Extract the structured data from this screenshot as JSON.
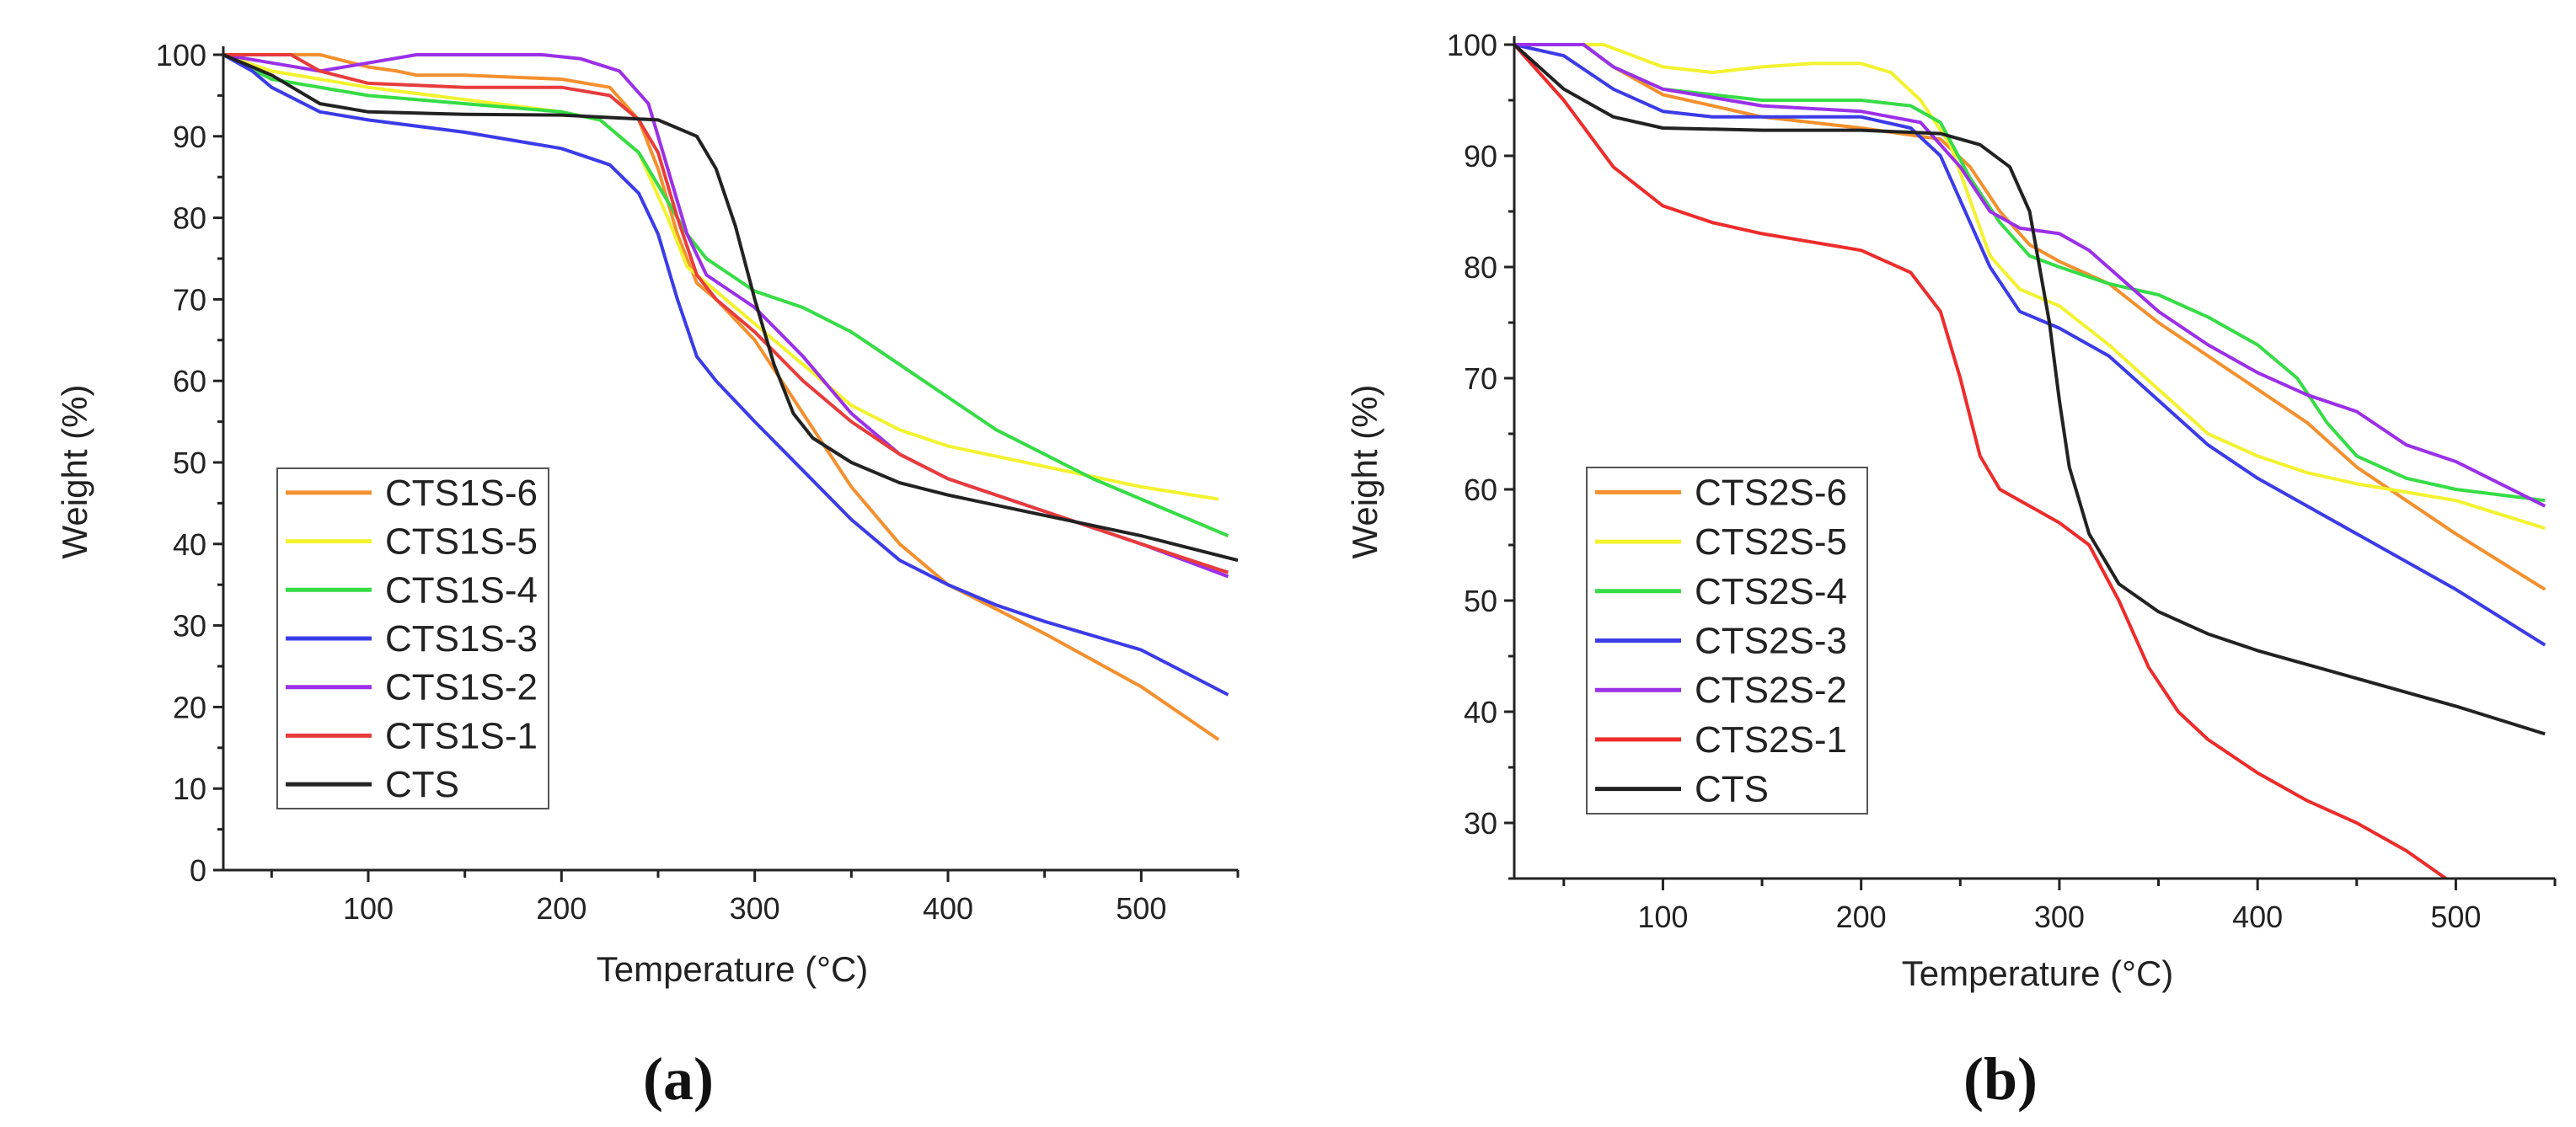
{
  "chart_data": [
    {
      "type": "line",
      "panel_label": "(a)",
      "xlabel": "Temperature (°C)",
      "ylabel": "Weight (%)",
      "xlim": [
        25,
        550
      ],
      "ylim": [
        0,
        100
      ],
      "xticks": [
        100,
        200,
        300,
        400,
        500
      ],
      "yticks": [
        0,
        10,
        20,
        30,
        40,
        50,
        60,
        70,
        80,
        90,
        100
      ],
      "grid": false,
      "legend_position": "center-left",
      "series": [
        {
          "name": "CTS1S-6",
          "color": "#f4902e",
          "x": [
            25,
            75,
            100,
            115,
            125,
            150,
            200,
            225,
            240,
            250,
            260,
            270,
            280,
            300,
            325,
            350,
            375,
            400,
            425,
            450,
            500,
            540
          ],
          "y": [
            100,
            100,
            98.5,
            98,
            97.5,
            97.5,
            97,
            96,
            92,
            86,
            78,
            72,
            70,
            65,
            56,
            47,
            40,
            35,
            32,
            29,
            22.5,
            16
          ]
        },
        {
          "name": "CTS1S-5",
          "color": "#f2f230",
          "x": [
            25,
            50,
            75,
            100,
            150,
            200,
            220,
            240,
            255,
            265,
            280,
            300,
            325,
            350,
            375,
            400,
            450,
            500,
            540
          ],
          "y": [
            100,
            98,
            97,
            96,
            94.5,
            93,
            92,
            88,
            80,
            74,
            71,
            67,
            62,
            57,
            54,
            52,
            49.5,
            47,
            45.5
          ]
        },
        {
          "name": "CTS1S-4",
          "color": "#36dc46",
          "x": [
            25,
            50,
            75,
            100,
            150,
            200,
            220,
            240,
            255,
            265,
            275,
            300,
            325,
            350,
            375,
            400,
            425,
            450,
            475,
            500,
            545
          ],
          "y": [
            100,
            97,
            96,
            95,
            94,
            93,
            92,
            88,
            82,
            78,
            75,
            71,
            69,
            66,
            62,
            58,
            54,
            51,
            48,
            45.5,
            41
          ]
        },
        {
          "name": "CTS1S-3",
          "color": "#3b3be8",
          "x": [
            25,
            40,
            50,
            75,
            100,
            150,
            200,
            225,
            240,
            250,
            260,
            270,
            280,
            300,
            325,
            350,
            375,
            400,
            425,
            450,
            500,
            545
          ],
          "y": [
            100,
            98,
            96,
            93,
            92,
            90.5,
            88.5,
            86.5,
            83,
            78,
            70,
            63,
            60,
            55,
            49,
            43,
            38,
            35,
            32.5,
            30.5,
            27,
            21.5
          ]
        },
        {
          "name": "CTS1S-2",
          "color": "#9b30e8",
          "x": [
            25,
            50,
            75,
            100,
            125,
            150,
            190,
            210,
            230,
            245,
            255,
            265,
            275,
            300,
            325,
            350,
            375,
            400,
            450,
            500,
            545
          ],
          "y": [
            100,
            99,
            98,
            99,
            100,
            100,
            100,
            99.5,
            98,
            94,
            86,
            78,
            73,
            69,
            63,
            56,
            51,
            48,
            44,
            40,
            36
          ]
        },
        {
          "name": "CTS1S-1",
          "color": "#e83c3c",
          "x": [
            25,
            60,
            75,
            100,
            150,
            200,
            225,
            240,
            250,
            260,
            270,
            280,
            300,
            325,
            350,
            375,
            400,
            450,
            500,
            545
          ],
          "y": [
            100,
            100,
            98,
            96.5,
            96,
            96,
            95,
            92,
            88,
            80,
            73,
            70,
            66,
            60,
            55,
            51,
            48,
            44,
            40,
            36.5
          ]
        },
        {
          "name": "CTS",
          "color": "#222222",
          "x": [
            25,
            50,
            75,
            100,
            150,
            200,
            250,
            270,
            280,
            290,
            300,
            310,
            320,
            330,
            350,
            375,
            400,
            450,
            500,
            550
          ],
          "y": [
            100,
            97.5,
            94,
            93,
            92.7,
            92.6,
            92,
            90,
            86,
            79,
            70,
            62,
            56,
            53,
            50,
            47.5,
            46,
            43.5,
            41,
            38
          ]
        }
      ]
    },
    {
      "type": "line",
      "panel_label": "(b)",
      "xlabel": "Temperature (°C)",
      "ylabel": "Weight (%)",
      "xlim": [
        25,
        550
      ],
      "ylim": [
        25,
        100
      ],
      "xticks": [
        100,
        200,
        300,
        400,
        500
      ],
      "yticks": [
        30,
        40,
        50,
        60,
        70,
        80,
        90,
        100
      ],
      "grid": false,
      "legend_position": "center-left",
      "series": [
        {
          "name": "CTS2S-6",
          "color": "#f4902e",
          "x": [
            25,
            60,
            75,
            100,
            125,
            150,
            200,
            240,
            255,
            270,
            285,
            300,
            325,
            350,
            375,
            400,
            425,
            450,
            475,
            500,
            545
          ],
          "y": [
            100,
            100,
            98,
            95.5,
            94.5,
            93.5,
            92.5,
            91.5,
            89,
            85,
            82,
            80.5,
            78.5,
            75,
            72,
            69,
            66,
            62,
            59,
            56,
            51
          ]
        },
        {
          "name": "CTS2S-5",
          "color": "#f2f230",
          "x": [
            25,
            70,
            100,
            125,
            150,
            175,
            200,
            215,
            230,
            245,
            255,
            265,
            280,
            300,
            325,
            350,
            375,
            400,
            425,
            450,
            500,
            545
          ],
          "y": [
            100,
            100,
            98,
            97.5,
            98,
            98.3,
            98.3,
            97.5,
            95,
            91,
            86,
            81,
            78,
            76.5,
            73,
            69,
            65,
            63,
            61.5,
            60.5,
            59,
            56.5
          ]
        },
        {
          "name": "CTS2S-4",
          "color": "#36dc46",
          "x": [
            25,
            60,
            75,
            100,
            125,
            150,
            200,
            225,
            240,
            255,
            270,
            285,
            300,
            325,
            350,
            375,
            400,
            420,
            435,
            450,
            475,
            500,
            545
          ],
          "y": [
            100,
            100,
            98,
            96,
            95.5,
            95,
            95,
            94.5,
            93,
            88,
            84,
            81,
            80,
            78.5,
            77.5,
            75.5,
            73,
            70,
            66,
            63,
            61,
            60,
            59
          ]
        },
        {
          "name": "CTS2S-3",
          "color": "#3b3be8",
          "x": [
            25,
            50,
            75,
            100,
            125,
            150,
            200,
            225,
            240,
            255,
            265,
            280,
            300,
            325,
            350,
            375,
            400,
            450,
            500,
            545
          ],
          "y": [
            100,
            99,
            96,
            94,
            93.5,
            93.5,
            93.5,
            92.5,
            90,
            84,
            80,
            76,
            74.5,
            72,
            68,
            64,
            61,
            56,
            51,
            46
          ]
        },
        {
          "name": "CTS2S-2",
          "color": "#9b30e8",
          "x": [
            25,
            60,
            75,
            100,
            150,
            200,
            230,
            250,
            265,
            280,
            300,
            315,
            350,
            375,
            400,
            425,
            450,
            475,
            500,
            545
          ],
          "y": [
            100,
            100,
            98,
            96,
            94.5,
            94,
            93,
            89,
            85,
            83.5,
            83,
            81.5,
            76,
            73,
            70.5,
            68.5,
            67,
            64,
            62.5,
            58.5
          ]
        },
        {
          "name": "CTS2S-1",
          "color": "#ee2c2c",
          "x": [
            25,
            50,
            75,
            100,
            125,
            150,
            200,
            225,
            240,
            250,
            260,
            270,
            290,
            300,
            315,
            330,
            345,
            360,
            375,
            400,
            425,
            450,
            475,
            495
          ],
          "y": [
            100,
            95,
            89,
            85.5,
            84,
            83,
            81.5,
            79.5,
            76,
            70,
            63,
            60,
            58,
            57,
            55,
            50,
            44,
            40,
            37.5,
            34.5,
            32,
            30,
            27.5,
            25
          ]
        },
        {
          "name": "CTS",
          "color": "#222222",
          "x": [
            25,
            50,
            75,
            100,
            150,
            200,
            240,
            260,
            275,
            285,
            295,
            300,
            305,
            315,
            330,
            350,
            375,
            400,
            450,
            500,
            545
          ],
          "y": [
            100,
            96,
            93.5,
            92.5,
            92.3,
            92.3,
            92,
            91,
            89,
            85,
            75,
            68,
            62,
            56,
            51.5,
            49,
            47,
            45.5,
            43,
            40.5,
            38
          ]
        }
      ]
    }
  ]
}
